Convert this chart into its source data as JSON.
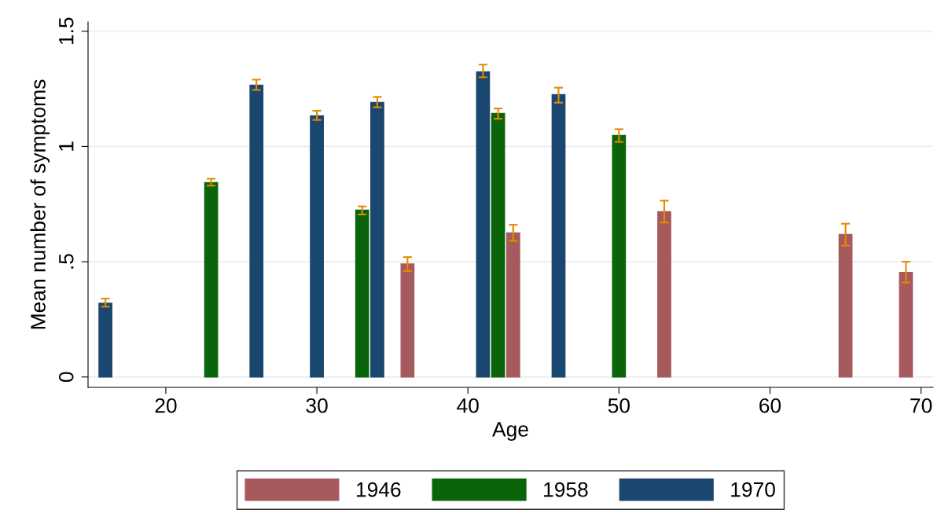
{
  "chart_data": {
    "type": "bar",
    "xlabel": "Age",
    "ylabel": "Mean number of symptoms",
    "xlim": [
      14.85,
      70.8
    ],
    "xticks": [
      20,
      30,
      40,
      50,
      60,
      70
    ],
    "ylim": [
      -0.045,
      1.54
    ],
    "yticks": [
      0,
      {
        "value": 0.5,
        "label": ".5"
      },
      1,
      1.5
    ],
    "grid": "y",
    "legend": "bottom",
    "series": [
      {
        "name": "1946",
        "color": "#a65a5e",
        "x": [
          36,
          43,
          53,
          65,
          69
        ],
        "values": [
          0.49,
          0.625,
          0.717,
          0.618,
          0.454
        ],
        "errors": [
          [
            0.46,
            0.52
          ],
          [
            0.59,
            0.66
          ],
          [
            0.67,
            0.765
          ],
          [
            0.57,
            0.665
          ],
          [
            0.41,
            0.5
          ]
        ]
      },
      {
        "name": "1958",
        "color": "#0a650a",
        "x": [
          23,
          33,
          42,
          50
        ],
        "values": [
          0.843,
          0.724,
          1.143,
          1.048
        ],
        "errors": [
          [
            0.83,
            0.86
          ],
          [
            0.705,
            0.74
          ],
          [
            1.12,
            1.165
          ],
          [
            1.02,
            1.075
          ]
        ]
      },
      {
        "name": "1970",
        "color": "#1a476f",
        "x": [
          16,
          26,
          30,
          34,
          41,
          46
        ],
        "values": [
          0.32,
          1.266,
          1.133,
          1.191,
          1.324,
          1.225
        ],
        "errors": [
          [
            0.305,
            0.34
          ],
          [
            1.245,
            1.29
          ],
          [
            1.115,
            1.155
          ],
          [
            1.17,
            1.215
          ],
          [
            1.3,
            1.355
          ],
          [
            1.19,
            1.255
          ]
        ]
      }
    ]
  }
}
